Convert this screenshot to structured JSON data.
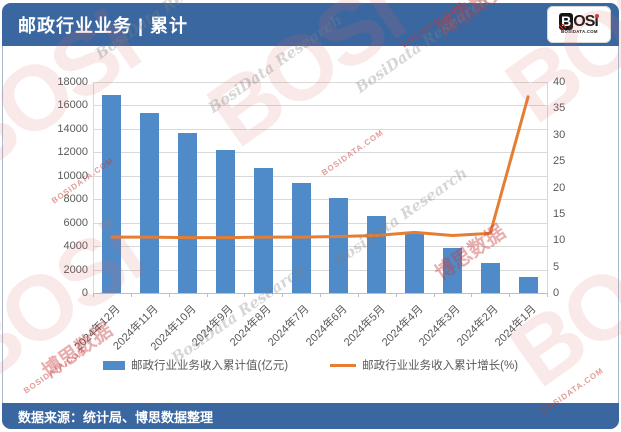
{
  "header": {
    "title": "邮政行业业务 | 累计",
    "logo": {
      "b": "B",
      "os": "OS",
      "i": "i",
      "domain": "BOSIDATA.COM"
    }
  },
  "footer": {
    "source_label": "数据来源：统计局、博思数据整理"
  },
  "colors": {
    "banner_blue": "#3A67A0",
    "bar_blue": "#4E8BC8",
    "line_orange": "#E57E33",
    "grid": "#D9D9D9",
    "axis_text": "#595959"
  },
  "chart_data": {
    "type": "combo",
    "title": "邮政行业业务 | 累计",
    "categories": [
      "2024年12月",
      "2024年11月",
      "2024年10月",
      "2024年9月",
      "2024年8月",
      "2024年7月",
      "2024年6月",
      "2024年5月",
      "2024年4月",
      "2024年3月",
      "2024年2月",
      "2024年1月"
    ],
    "series": [
      {
        "name": "邮政行业业务收入累计值(亿元)",
        "type": "bar",
        "axis": "left",
        "color": "#4E8BC8",
        "values": [
          16916,
          15355,
          13625,
          12200,
          10690,
          9360,
          8080,
          6590,
          5230,
          3865,
          2530,
          1395
        ]
      },
      {
        "name": "邮政行业业务收入累计增长(%)",
        "type": "line",
        "axis": "right",
        "color": "#E57E33",
        "values": [
          10.6,
          10.6,
          10.5,
          10.5,
          10.6,
          10.6,
          10.7,
          10.9,
          11.5,
          10.9,
          11.3,
          37.2
        ]
      }
    ],
    "left_axis": {
      "min": 0,
      "max": 18000,
      "step": 2000,
      "tick_labels": [
        "0",
        "2000",
        "4000",
        "6000",
        "8000",
        "10000",
        "12000",
        "14000",
        "16000",
        "18000"
      ]
    },
    "right_axis": {
      "min": 0,
      "max": 40,
      "step": 5,
      "tick_labels": [
        "0",
        "5",
        "10",
        "15",
        "20",
        "25",
        "30",
        "35",
        "40"
      ]
    },
    "grid": true,
    "legend_position": "bottom"
  },
  "watermarks": {
    "brand": "BOSi",
    "cn": "博思数据",
    "url": "BOSIDATA.COM",
    "script": "BosiData Research"
  }
}
